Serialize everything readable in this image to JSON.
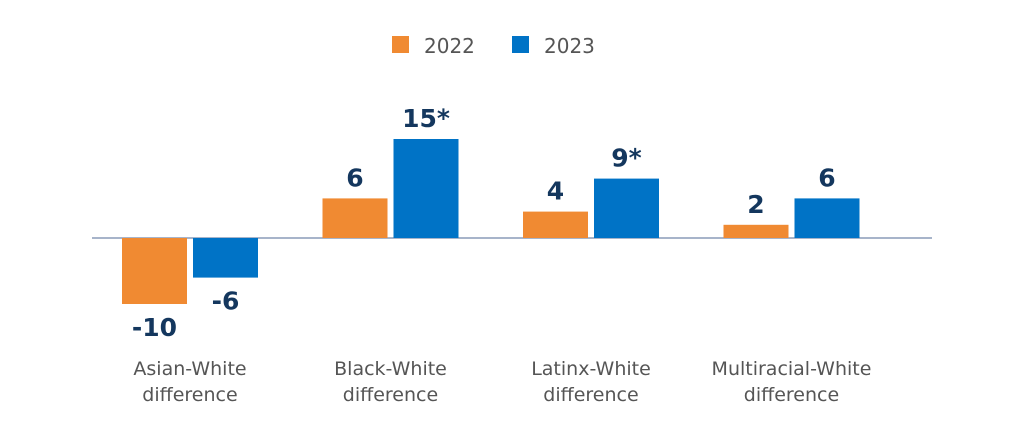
{
  "chart_data": {
    "type": "bar",
    "categories": [
      [
        "Asian-White",
        "difference"
      ],
      [
        "Black-White",
        "difference"
      ],
      [
        "Latinx-White",
        "difference"
      ],
      [
        "Multiracial-White",
        "difference"
      ]
    ],
    "series": [
      {
        "name": "2022",
        "color": "#F08A32",
        "values": [
          -10,
          6,
          4,
          2
        ],
        "labels": [
          "-10",
          "6",
          "4",
          "2"
        ]
      },
      {
        "name": "2023",
        "color": "#0073C6",
        "values": [
          -6,
          15,
          9,
          6
        ],
        "labels": [
          "-6",
          "15*",
          "9*",
          "6"
        ]
      }
    ],
    "title": "",
    "xlabel": "",
    "ylabel": "",
    "ylim": [
      -10,
      15
    ],
    "grid": false,
    "legend": "top-center",
    "label_color": "#14375E",
    "category_label_color": "#555555",
    "axis_color": "#8A9BB8"
  }
}
